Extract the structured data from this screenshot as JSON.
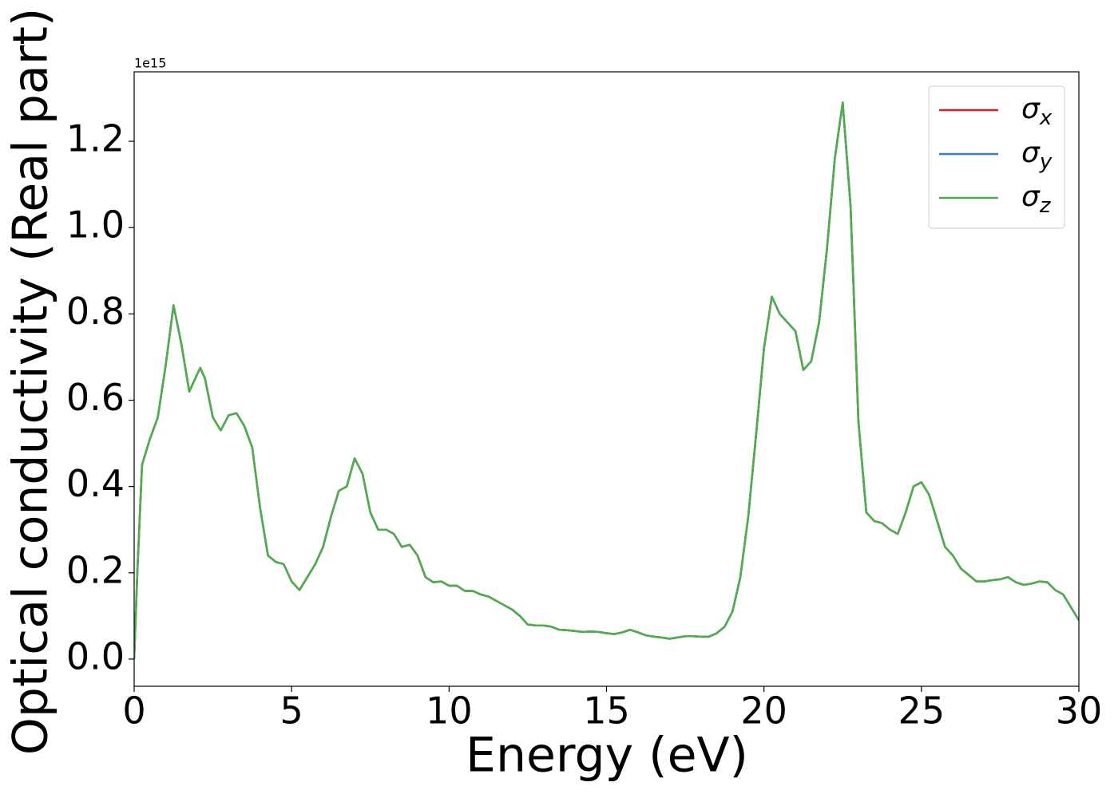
{
  "chart_data": {
    "type": "line",
    "x_label": "Energy (eV)",
    "y_label": "Optical conductivity (Real part)",
    "y_offset_text": "1e15",
    "x": [
      0,
      0.1,
      0.25,
      0.5,
      0.75,
      1.0,
      1.25,
      1.5,
      1.75,
      2.0,
      2.1,
      2.25,
      2.5,
      2.75,
      3.0,
      3.25,
      3.5,
      3.75,
      4.0,
      4.25,
      4.5,
      4.75,
      5.0,
      5.25,
      5.5,
      5.75,
      6.0,
      6.25,
      6.5,
      6.75,
      7.0,
      7.25,
      7.5,
      7.75,
      8.0,
      8.25,
      8.5,
      8.75,
      9.0,
      9.25,
      9.5,
      9.75,
      10.0,
      10.25,
      10.5,
      10.75,
      11.0,
      11.25,
      11.5,
      11.75,
      12.0,
      12.25,
      12.5,
      12.75,
      13.0,
      13.25,
      13.5,
      13.75,
      14.0,
      14.25,
      14.5,
      14.75,
      15.0,
      15.25,
      15.5,
      15.75,
      16.0,
      16.25,
      16.5,
      16.75,
      17.0,
      17.25,
      17.5,
      17.75,
      18.0,
      18.25,
      18.5,
      18.75,
      19.0,
      19.25,
      19.5,
      19.75,
      20.0,
      20.25,
      20.5,
      20.75,
      21.0,
      21.25,
      21.5,
      21.75,
      22.0,
      22.25,
      22.5,
      22.75,
      23.0,
      23.25,
      23.5,
      23.75,
      24.0,
      24.25,
      24.5,
      24.75,
      25.0,
      25.25,
      25.5,
      25.75,
      26.0,
      26.25,
      26.5,
      26.75,
      27.0,
      27.25,
      27.5,
      27.75,
      28.0,
      28.25,
      28.5,
      28.75,
      29.0,
      29.25,
      29.5,
      29.75,
      30.0
    ],
    "series": [
      {
        "name": "σx",
        "color": "#e41a1c",
        "values": [
          0.0,
          0.2,
          0.45,
          0.51,
          0.56,
          0.68,
          0.82,
          0.73,
          0.62,
          0.66,
          0.675,
          0.65,
          0.56,
          0.53,
          0.565,
          0.57,
          0.54,
          0.49,
          0.35,
          0.24,
          0.225,
          0.22,
          0.18,
          0.16,
          0.19,
          0.22,
          0.26,
          0.33,
          0.39,
          0.4,
          0.465,
          0.43,
          0.34,
          0.3,
          0.3,
          0.29,
          0.26,
          0.265,
          0.24,
          0.19,
          0.178,
          0.18,
          0.17,
          0.17,
          0.158,
          0.158,
          0.15,
          0.145,
          0.135,
          0.125,
          0.115,
          0.1,
          0.08,
          0.078,
          0.078,
          0.075,
          0.068,
          0.067,
          0.065,
          0.063,
          0.064,
          0.063,
          0.06,
          0.058,
          0.062,
          0.068,
          0.062,
          0.055,
          0.052,
          0.05,
          0.047,
          0.05,
          0.053,
          0.053,
          0.052,
          0.052,
          0.06,
          0.075,
          0.11,
          0.19,
          0.33,
          0.52,
          0.72,
          0.84,
          0.8,
          0.78,
          0.76,
          0.67,
          0.69,
          0.78,
          0.95,
          1.16,
          1.29,
          1.05,
          0.55,
          0.34,
          0.32,
          0.315,
          0.3,
          0.29,
          0.34,
          0.4,
          0.41,
          0.38,
          0.32,
          0.26,
          0.24,
          0.21,
          0.195,
          0.18,
          0.18,
          0.183,
          0.185,
          0.19,
          0.178,
          0.172,
          0.175,
          0.18,
          0.178,
          0.16,
          0.15,
          0.12,
          0.09
        ]
      },
      {
        "name": "σy",
        "color": "#377eb8",
        "values": [
          0.0,
          0.2,
          0.45,
          0.51,
          0.56,
          0.68,
          0.82,
          0.73,
          0.62,
          0.66,
          0.675,
          0.65,
          0.56,
          0.53,
          0.565,
          0.57,
          0.54,
          0.49,
          0.35,
          0.24,
          0.225,
          0.22,
          0.18,
          0.16,
          0.19,
          0.22,
          0.26,
          0.33,
          0.39,
          0.4,
          0.465,
          0.43,
          0.34,
          0.3,
          0.3,
          0.29,
          0.26,
          0.265,
          0.24,
          0.19,
          0.178,
          0.18,
          0.17,
          0.17,
          0.158,
          0.158,
          0.15,
          0.145,
          0.135,
          0.125,
          0.115,
          0.1,
          0.08,
          0.078,
          0.078,
          0.075,
          0.068,
          0.067,
          0.065,
          0.063,
          0.064,
          0.063,
          0.06,
          0.058,
          0.062,
          0.068,
          0.062,
          0.055,
          0.052,
          0.05,
          0.047,
          0.05,
          0.053,
          0.053,
          0.052,
          0.052,
          0.06,
          0.075,
          0.11,
          0.19,
          0.33,
          0.52,
          0.72,
          0.84,
          0.8,
          0.78,
          0.76,
          0.67,
          0.69,
          0.78,
          0.95,
          1.16,
          1.29,
          1.05,
          0.55,
          0.34,
          0.32,
          0.315,
          0.3,
          0.29,
          0.34,
          0.4,
          0.41,
          0.38,
          0.32,
          0.26,
          0.24,
          0.21,
          0.195,
          0.18,
          0.18,
          0.183,
          0.185,
          0.19,
          0.178,
          0.172,
          0.175,
          0.18,
          0.178,
          0.16,
          0.15,
          0.12,
          0.09
        ]
      },
      {
        "name": "σz",
        "color": "#4daf4a",
        "values": [
          0.0,
          0.2,
          0.45,
          0.51,
          0.56,
          0.68,
          0.82,
          0.73,
          0.62,
          0.66,
          0.675,
          0.65,
          0.56,
          0.53,
          0.565,
          0.57,
          0.54,
          0.49,
          0.35,
          0.24,
          0.225,
          0.22,
          0.18,
          0.16,
          0.19,
          0.22,
          0.26,
          0.33,
          0.39,
          0.4,
          0.465,
          0.43,
          0.34,
          0.3,
          0.3,
          0.29,
          0.26,
          0.265,
          0.24,
          0.19,
          0.178,
          0.18,
          0.17,
          0.17,
          0.158,
          0.158,
          0.15,
          0.145,
          0.135,
          0.125,
          0.115,
          0.1,
          0.08,
          0.078,
          0.078,
          0.075,
          0.068,
          0.067,
          0.065,
          0.063,
          0.064,
          0.063,
          0.06,
          0.058,
          0.062,
          0.068,
          0.062,
          0.055,
          0.052,
          0.05,
          0.047,
          0.05,
          0.053,
          0.053,
          0.052,
          0.052,
          0.06,
          0.075,
          0.11,
          0.19,
          0.33,
          0.52,
          0.72,
          0.84,
          0.8,
          0.78,
          0.76,
          0.67,
          0.69,
          0.78,
          0.95,
          1.16,
          1.29,
          1.05,
          0.55,
          0.34,
          0.32,
          0.315,
          0.3,
          0.29,
          0.34,
          0.4,
          0.41,
          0.38,
          0.32,
          0.26,
          0.24,
          0.21,
          0.195,
          0.18,
          0.18,
          0.183,
          0.185,
          0.19,
          0.178,
          0.172,
          0.175,
          0.18,
          0.178,
          0.16,
          0.15,
          0.12,
          0.09
        ]
      }
    ],
    "xlim": [
      0,
      30
    ],
    "xticks": [
      0,
      5,
      10,
      15,
      20,
      25,
      30
    ],
    "ylim": [
      -0.063,
      1.361
    ],
    "yticks": [
      {
        "value": 0,
        "label": "0.0"
      },
      0.2,
      0.4,
      0.6,
      0.8,
      {
        "value": 1,
        "label": "1.0"
      },
      1.2
    ],
    "grid": false,
    "legend": "upper right"
  }
}
